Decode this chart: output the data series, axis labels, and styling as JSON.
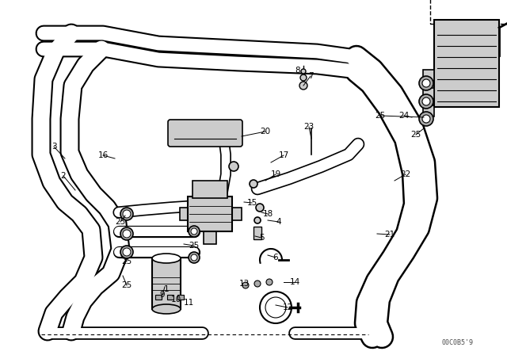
{
  "bg_color": "#ffffff",
  "line_color": "#000000",
  "watermark": "00C0B5'9",
  "labels": [
    [
      "1",
      210,
      365
    ],
    [
      "2",
      80,
      222
    ],
    [
      "3",
      68,
      185
    ],
    [
      "4",
      352,
      280
    ],
    [
      "5",
      330,
      300
    ],
    [
      "6",
      348,
      325
    ],
    [
      "7",
      392,
      96
    ],
    [
      "8",
      376,
      89
    ],
    [
      "9",
      205,
      372
    ],
    [
      "10",
      222,
      378
    ],
    [
      "11",
      238,
      382
    ],
    [
      "12",
      363,
      388
    ],
    [
      "13",
      308,
      358
    ],
    [
      "14",
      372,
      356
    ],
    [
      "15",
      318,
      256
    ],
    [
      "16",
      130,
      196
    ],
    [
      "17",
      358,
      196
    ],
    [
      "18",
      338,
      270
    ],
    [
      "19",
      348,
      220
    ],
    [
      "20",
      335,
      166
    ],
    [
      "21",
      492,
      296
    ],
    [
      "22",
      512,
      220
    ],
    [
      "23",
      390,
      160
    ],
    [
      "24",
      510,
      146
    ],
    [
      "25",
      152,
      280
    ],
    [
      "25",
      245,
      310
    ],
    [
      "25",
      160,
      330
    ],
    [
      "25",
      160,
      360
    ],
    [
      "25",
      480,
      146
    ],
    [
      "25",
      525,
      170
    ]
  ]
}
